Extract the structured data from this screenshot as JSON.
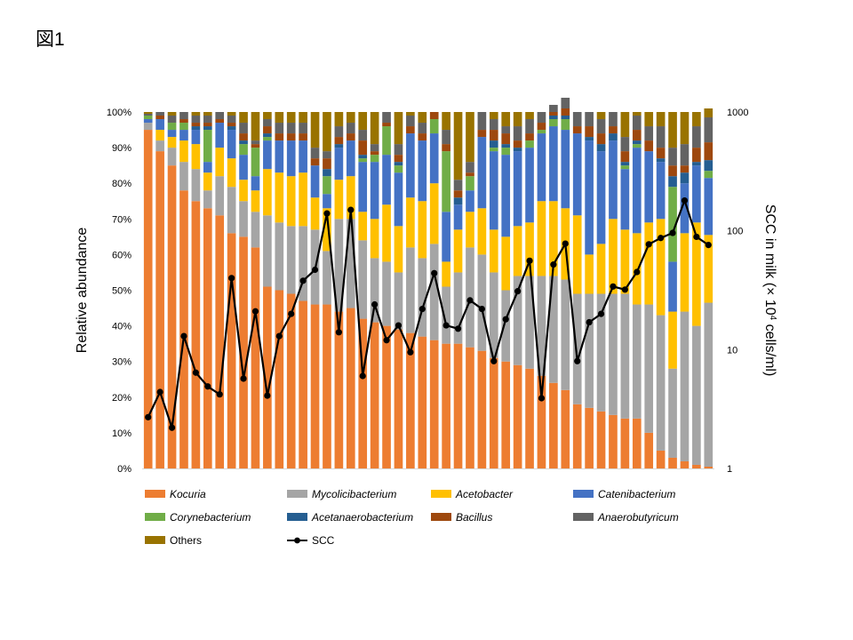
{
  "figure_label": "図1",
  "chart_data": {
    "type": "bar",
    "stacked": true,
    "ylabel": "Relative abundance",
    "y2label": "SCC in milk (×10⁴ cells/ml)",
    "y2label_parts": {
      "prefix": "SCC in milk (",
      "times": "×",
      "base": " 10",
      "sup": "4",
      "suffix": " cells/ml)"
    },
    "ylim": [
      0,
      100
    ],
    "y_ticks": [
      "0%",
      "10%",
      "20%",
      "30%",
      "40%",
      "50%",
      "60%",
      "70%",
      "80%",
      "90%",
      "100%"
    ],
    "y2lim": [
      1,
      1000
    ],
    "y2scale": "log",
    "y2_ticks": [
      "1",
      "10",
      "100",
      "1000"
    ],
    "legend_position": "bottom",
    "series": [
      {
        "name": "Kocuria",
        "color": "#ED7D31",
        "italic": true,
        "values": [
          95,
          89,
          85,
          78,
          75,
          73,
          71,
          66,
          65,
          62,
          51,
          50,
          49,
          47,
          46,
          46,
          44,
          45,
          42,
          41,
          40,
          39,
          38,
          37,
          36,
          35,
          35,
          34,
          33,
          31,
          30,
          29,
          28,
          26,
          24,
          22,
          18,
          17,
          16,
          15,
          14,
          14,
          10,
          5,
          3,
          2,
          1,
          0.5
        ]
      },
      {
        "name": "Mycolicibacterium",
        "color": "#A5A5A5",
        "italic": true,
        "values": [
          2,
          3,
          5,
          8,
          9,
          5,
          11,
          13,
          10,
          10,
          20,
          19,
          19,
          21,
          21,
          15,
          26,
          25,
          22,
          18,
          18,
          16,
          24,
          22,
          27,
          16,
          20,
          28,
          27,
          24,
          20,
          25,
          26,
          28,
          30,
          31,
          31,
          32,
          33,
          34,
          35,
          32,
          36,
          38,
          25,
          42,
          39,
          46
        ]
      },
      {
        "name": "Acetobacter",
        "color": "#FFC000",
        "italic": true,
        "values": [
          0,
          3,
          3,
          6,
          7,
          5,
          8,
          8,
          6,
          6,
          13,
          14,
          14,
          15,
          9,
          12,
          11,
          12,
          8,
          11,
          16,
          13,
          14,
          16,
          17,
          7,
          12,
          10,
          13,
          12,
          15,
          14,
          15,
          21,
          21,
          20,
          22,
          11,
          14,
          21,
          18,
          20,
          23,
          27,
          16,
          22,
          29,
          19
        ]
      },
      {
        "name": "Catenibacterium",
        "color": "#4472C4",
        "italic": true,
        "values": [
          1,
          3,
          2,
          3,
          4,
          3,
          7,
          8,
          7,
          4,
          8,
          9,
          10,
          9,
          9,
          4,
          9,
          10,
          14,
          16,
          14,
          15,
          18,
          17,
          14,
          14,
          7,
          6,
          20,
          22,
          23,
          21,
          21,
          19,
          21,
          22,
          23,
          32,
          26,
          22,
          17,
          24,
          20,
          16,
          14,
          14,
          16,
          16
        ]
      },
      {
        "name": "Corynebacterium",
        "color": "#70AD47",
        "italic": true,
        "values": [
          1,
          0,
          2,
          2,
          0,
          9,
          0,
          0,
          3,
          8,
          1,
          0,
          0,
          0,
          0,
          5,
          0,
          0,
          1,
          2,
          8,
          2,
          0,
          0,
          4,
          17,
          0,
          4,
          0,
          1,
          2,
          0,
          2,
          1,
          2,
          3,
          0,
          0,
          0,
          0,
          1,
          1,
          0,
          0,
          21,
          0,
          0,
          2
        ]
      },
      {
        "name": "Acetanaerobacterium",
        "color": "#255E91",
        "italic": true,
        "values": [
          0,
          0,
          0,
          0,
          1,
          1,
          0,
          1,
          1,
          0,
          1,
          0,
          0,
          0,
          0,
          2,
          1,
          0,
          1,
          0,
          0,
          1,
          0,
          0,
          0,
          0,
          2,
          0,
          0,
          2,
          1,
          1,
          0,
          0,
          1,
          1,
          0,
          1,
          2,
          2,
          1,
          1,
          0,
          1,
          3,
          3,
          1,
          3
        ]
      },
      {
        "name": "Bacillus",
        "color": "#9E480E",
        "italic": true,
        "values": [
          0,
          1,
          0,
          1,
          1,
          1,
          1,
          1,
          2,
          1,
          2,
          2,
          2,
          2,
          2,
          3,
          2,
          2,
          4,
          1,
          1,
          2,
          2,
          2,
          2,
          2,
          2,
          1,
          2,
          3,
          3,
          2,
          2,
          2,
          1,
          2,
          2,
          3,
          3,
          2,
          3,
          3,
          3,
          3,
          3,
          2,
          4,
          5
        ]
      },
      {
        "name": "Anaerobutyricum",
        "color": "#636363",
        "italic": true,
        "values": [
          0.5,
          1,
          2,
          2,
          2,
          2,
          2,
          2,
          3,
          1,
          2,
          3,
          3,
          3,
          3,
          2,
          3,
          3,
          3,
          2,
          3,
          3,
          3,
          3,
          0,
          4,
          3,
          3,
          5,
          3,
          2,
          4,
          4,
          3,
          2,
          3,
          4,
          4,
          4,
          4,
          4,
          4,
          4,
          6,
          5,
          6,
          6,
          7
        ]
      },
      {
        "name": "Others",
        "color": "#997300",
        "italic": false,
        "values": [
          0.5,
          0,
          1,
          0,
          1,
          1,
          0,
          1,
          3,
          8,
          2,
          3,
          3,
          3,
          10,
          11,
          4,
          3,
          5,
          9,
          0,
          9,
          1,
          3,
          0,
          5,
          19,
          14,
          0,
          2,
          4,
          4,
          2,
          0,
          0,
          0,
          0,
          0,
          2,
          0,
          7,
          1,
          4,
          4,
          10,
          9,
          4,
          2.5
        ]
      }
    ],
    "line_series": {
      "name": "SCC",
      "color": "#000000",
      "axis": "right",
      "values": [
        2.7,
        4.4,
        2.2,
        13,
        6.4,
        4.9,
        4.2,
        40,
        5.7,
        21,
        4.1,
        13,
        20,
        38,
        47,
        140,
        14,
        150,
        6,
        24,
        12,
        16,
        9.5,
        22,
        44,
        16,
        15,
        26,
        22,
        8,
        18,
        31,
        56,
        3.9,
        52,
        78,
        8,
        17,
        20,
        34,
        32,
        45,
        77,
        87,
        96,
        180,
        89,
        76
      ]
    }
  }
}
